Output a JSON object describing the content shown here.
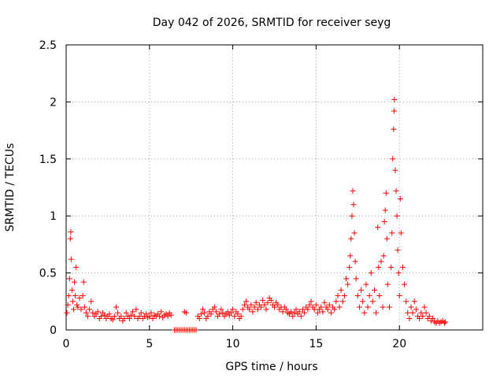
{
  "chart_data": {
    "type": "scatter",
    "title": "Day 042 of 2026, SRMTID for receiver seyg",
    "xlabel": "GPS time / hours",
    "ylabel": "SRMTID / TECUs",
    "xlim": [
      0,
      25
    ],
    "ylim": [
      0,
      2.5
    ],
    "x_ticks": [
      0,
      5,
      10,
      15,
      20
    ],
    "x_tick_labels": [
      "0",
      "5",
      "10",
      "15",
      "20"
    ],
    "y_ticks": [
      0,
      0.5,
      1,
      1.5,
      2,
      2.5
    ],
    "y_tick_labels": [
      "0",
      "0.5",
      "1",
      "1.5",
      "2",
      "2.5"
    ],
    "grid": true,
    "marker": "+",
    "color": "#ff0000",
    "series": [
      {
        "name": "SRMTID",
        "points": [
          [
            0.05,
            0.15
          ],
          [
            0.1,
            0.22
          ],
          [
            0.15,
            0.3
          ],
          [
            0.2,
            0.45
          ],
          [
            0.25,
            0.8
          ],
          [
            0.28,
            0.86
          ],
          [
            0.3,
            0.62
          ],
          [
            0.35,
            0.35
          ],
          [
            0.4,
            0.25
          ],
          [
            0.45,
            0.18
          ],
          [
            0.5,
            0.42
          ],
          [
            0.55,
            0.3
          ],
          [
            0.6,
            0.55
          ],
          [
            0.65,
            0.22
          ],
          [
            0.7,
            0.2
          ],
          [
            0.8,
            0.28
          ],
          [
            0.9,
            0.18
          ],
          [
            1.0,
            0.3
          ],
          [
            1.05,
            0.42
          ],
          [
            1.1,
            0.2
          ],
          [
            1.2,
            0.15
          ],
          [
            1.3,
            0.12
          ],
          [
            1.4,
            0.18
          ],
          [
            1.5,
            0.25
          ],
          [
            1.6,
            0.15
          ],
          [
            1.7,
            0.12
          ],
          [
            1.8,
            0.14
          ],
          [
            1.9,
            0.16
          ],
          [
            2.0,
            0.1
          ],
          [
            2.1,
            0.12
          ],
          [
            2.2,
            0.15
          ],
          [
            2.3,
            0.13
          ],
          [
            2.4,
            0.1
          ],
          [
            2.5,
            0.12
          ],
          [
            2.6,
            0.14
          ],
          [
            2.7,
            0.1
          ],
          [
            2.8,
            0.09
          ],
          [
            2.9,
            0.12
          ],
          [
            3.0,
            0.2
          ],
          [
            3.1,
            0.15
          ],
          [
            3.2,
            0.1
          ],
          [
            3.3,
            0.12
          ],
          [
            3.4,
            0.08
          ],
          [
            3.5,
            0.1
          ],
          [
            3.6,
            0.15
          ],
          [
            3.7,
            0.12
          ],
          [
            3.8,
            0.1
          ],
          [
            3.9,
            0.13
          ],
          [
            4.0,
            0.16
          ],
          [
            4.1,
            0.12
          ],
          [
            4.2,
            0.18
          ],
          [
            4.3,
            0.1
          ],
          [
            4.4,
            0.12
          ],
          [
            4.5,
            0.15
          ],
          [
            4.6,
            0.1
          ],
          [
            4.7,
            0.12
          ],
          [
            4.8,
            0.14
          ],
          [
            4.9,
            0.11
          ],
          [
            5.0,
            0.12
          ],
          [
            5.1,
            0.15
          ],
          [
            5.2,
            0.1
          ],
          [
            5.3,
            0.13
          ],
          [
            5.4,
            0.12
          ],
          [
            5.5,
            0.14
          ],
          [
            5.6,
            0.12
          ],
          [
            5.7,
            0.16
          ],
          [
            5.8,
            0.11
          ],
          [
            5.9,
            0.13
          ],
          [
            6.0,
            0.14
          ],
          [
            6.1,
            0.12
          ],
          [
            6.2,
            0.15
          ],
          [
            6.3,
            0.13
          ],
          [
            6.5,
            0.0
          ],
          [
            6.6,
            0.0
          ],
          [
            6.7,
            0.0
          ],
          [
            6.8,
            0.0
          ],
          [
            6.9,
            0.0
          ],
          [
            7.0,
            0.0
          ],
          [
            7.1,
            0.0
          ],
          [
            7.2,
            0.0
          ],
          [
            7.3,
            0.0
          ],
          [
            7.4,
            0.0
          ],
          [
            7.5,
            0.0
          ],
          [
            7.6,
            0.0
          ],
          [
            7.7,
            0.0
          ],
          [
            7.8,
            0.0
          ],
          [
            7.1,
            0.16
          ],
          [
            7.2,
            0.15
          ],
          [
            7.9,
            0.12
          ],
          [
            8.0,
            0.1
          ],
          [
            8.1,
            0.14
          ],
          [
            8.2,
            0.18
          ],
          [
            8.3,
            0.15
          ],
          [
            8.4,
            0.1
          ],
          [
            8.5,
            0.12
          ],
          [
            8.6,
            0.16
          ],
          [
            8.7,
            0.14
          ],
          [
            8.8,
            0.18
          ],
          [
            8.9,
            0.2
          ],
          [
            9.0,
            0.16
          ],
          [
            9.1,
            0.12
          ],
          [
            9.2,
            0.14
          ],
          [
            9.3,
            0.18
          ],
          [
            9.4,
            0.15
          ],
          [
            9.5,
            0.12
          ],
          [
            9.6,
            0.14
          ],
          [
            9.7,
            0.16
          ],
          [
            9.8,
            0.13
          ],
          [
            9.9,
            0.15
          ],
          [
            10.0,
            0.18
          ],
          [
            10.1,
            0.12
          ],
          [
            10.2,
            0.16
          ],
          [
            10.3,
            0.14
          ],
          [
            10.4,
            0.1
          ],
          [
            10.5,
            0.12
          ],
          [
            10.6,
            0.18
          ],
          [
            10.7,
            0.22
          ],
          [
            10.8,
            0.25
          ],
          [
            10.9,
            0.2
          ],
          [
            11.0,
            0.18
          ],
          [
            11.1,
            0.22
          ],
          [
            11.2,
            0.16
          ],
          [
            11.3,
            0.2
          ],
          [
            11.4,
            0.24
          ],
          [
            11.5,
            0.18
          ],
          [
            11.6,
            0.22
          ],
          [
            11.7,
            0.2
          ],
          [
            11.8,
            0.26
          ],
          [
            11.9,
            0.22
          ],
          [
            12.0,
            0.18
          ],
          [
            12.1,
            0.24
          ],
          [
            12.2,
            0.28
          ],
          [
            12.3,
            0.26
          ],
          [
            12.4,
            0.22
          ],
          [
            12.5,
            0.2
          ],
          [
            12.6,
            0.24
          ],
          [
            12.7,
            0.22
          ],
          [
            12.8,
            0.18
          ],
          [
            12.9,
            0.2
          ],
          [
            13.0,
            0.16
          ],
          [
            13.1,
            0.2
          ],
          [
            13.2,
            0.18
          ],
          [
            13.3,
            0.15
          ],
          [
            13.4,
            0.14
          ],
          [
            13.5,
            0.16
          ],
          [
            13.6,
            0.12
          ],
          [
            13.7,
            0.15
          ],
          [
            13.8,
            0.18
          ],
          [
            13.9,
            0.14
          ],
          [
            14.0,
            0.16
          ],
          [
            14.1,
            0.12
          ],
          [
            14.2,
            0.18
          ],
          [
            14.3,
            0.15
          ],
          [
            14.4,
            0.2
          ],
          [
            14.5,
            0.18
          ],
          [
            14.6,
            0.22
          ],
          [
            14.7,
            0.25
          ],
          [
            14.8,
            0.2
          ],
          [
            14.9,
            0.18
          ],
          [
            15.0,
            0.22
          ],
          [
            15.1,
            0.15
          ],
          [
            15.2,
            0.18
          ],
          [
            15.3,
            0.2
          ],
          [
            15.4,
            0.16
          ],
          [
            15.5,
            0.24
          ],
          [
            15.6,
            0.2
          ],
          [
            15.7,
            0.18
          ],
          [
            15.8,
            0.22
          ],
          [
            15.9,
            0.15
          ],
          [
            16.0,
            0.2
          ],
          [
            16.1,
            0.18
          ],
          [
            16.2,
            0.25
          ],
          [
            16.3,
            0.3
          ],
          [
            16.4,
            0.2
          ],
          [
            16.5,
            0.35
          ],
          [
            16.6,
            0.25
          ],
          [
            16.7,
            0.3
          ],
          [
            16.8,
            0.45
          ],
          [
            16.9,
            0.4
          ],
          [
            17.0,
            0.55
          ],
          [
            17.05,
            0.65
          ],
          [
            17.1,
            0.8
          ],
          [
            17.15,
            1.0
          ],
          [
            17.2,
            1.22
          ],
          [
            17.25,
            1.1
          ],
          [
            17.3,
            0.85
          ],
          [
            17.35,
            0.6
          ],
          [
            17.4,
            0.45
          ],
          [
            17.5,
            0.3
          ],
          [
            17.6,
            0.2
          ],
          [
            17.7,
            0.35
          ],
          [
            17.8,
            0.25
          ],
          [
            17.9,
            0.15
          ],
          [
            18.0,
            0.4
          ],
          [
            18.1,
            0.2
          ],
          [
            18.2,
            0.3
          ],
          [
            18.3,
            0.5
          ],
          [
            18.4,
            0.25
          ],
          [
            18.5,
            0.35
          ],
          [
            18.6,
            0.15
          ],
          [
            18.7,
            0.9
          ],
          [
            18.75,
            0.55
          ],
          [
            18.8,
            0.3
          ],
          [
            18.9,
            0.6
          ],
          [
            19.0,
            0.2
          ],
          [
            19.05,
            0.65
          ],
          [
            19.1,
            0.95
          ],
          [
            19.15,
            1.05
          ],
          [
            19.2,
            1.2
          ],
          [
            19.25,
            0.8
          ],
          [
            19.3,
            0.4
          ],
          [
            19.4,
            0.2
          ],
          [
            19.5,
            0.55
          ],
          [
            19.55,
            0.85
          ],
          [
            19.6,
            1.5
          ],
          [
            19.65,
            1.76
          ],
          [
            19.68,
            1.92
          ],
          [
            19.7,
            2.02
          ],
          [
            19.75,
            1.4
          ],
          [
            19.8,
            1.22
          ],
          [
            19.85,
            1.0
          ],
          [
            19.9,
            0.7
          ],
          [
            19.95,
            0.5
          ],
          [
            20.0,
            0.3
          ],
          [
            20.05,
            1.15
          ],
          [
            20.1,
            0.85
          ],
          [
            20.2,
            0.55
          ],
          [
            20.3,
            0.4
          ],
          [
            20.4,
            0.25
          ],
          [
            20.5,
            0.15
          ],
          [
            20.6,
            0.1
          ],
          [
            20.7,
            0.2
          ],
          [
            20.8,
            0.15
          ],
          [
            20.9,
            0.25
          ],
          [
            21.0,
            0.18
          ],
          [
            21.1,
            0.12
          ],
          [
            21.2,
            0.1
          ],
          [
            21.3,
            0.15
          ],
          [
            21.4,
            0.12
          ],
          [
            21.5,
            0.2
          ],
          [
            21.6,
            0.15
          ],
          [
            21.7,
            0.1
          ],
          [
            21.8,
            0.12
          ],
          [
            21.9,
            0.08
          ],
          [
            22.0,
            0.1
          ],
          [
            22.1,
            0.07
          ],
          [
            22.2,
            0.06
          ],
          [
            22.3,
            0.08
          ],
          [
            22.4,
            0.06
          ],
          [
            22.5,
            0.07
          ],
          [
            22.6,
            0.08
          ],
          [
            22.7,
            0.06
          ],
          [
            22.75,
            0.07
          ]
        ]
      }
    ]
  }
}
